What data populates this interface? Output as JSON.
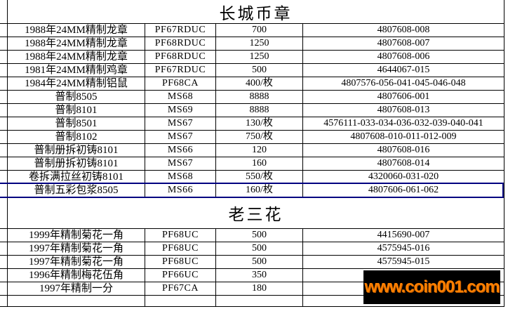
{
  "colors": {
    "grid_line": "#000000",
    "background": "#ffffff",
    "selection_border": "#000080",
    "watermark_background": "#000000",
    "watermark_text_color": "#ff8000"
  },
  "sections": [
    {
      "title": "长城币章",
      "columns": [
        "item-name",
        "grade",
        "price",
        "cert-number"
      ],
      "rows": [
        [
          "1988年24MM精制龙章",
          "PF67RDUC",
          "700",
          "4807608-008"
        ],
        [
          "1988年24MM精制龙章",
          "PF68RDUC",
          "1250",
          "4807608-007"
        ],
        [
          "1988年24MM精制龙章",
          "PF68RDUC",
          "1250",
          "4807608-006"
        ],
        [
          "1981年24MM精制鸡章",
          "PF67RDUC",
          "500",
          "4644067-015"
        ],
        [
          "1984年24MM精制铝鼠",
          "PF68CA",
          "400/枚",
          "4807576-056-041-045-046-048"
        ],
        [
          "普制8505",
          "MS68",
          "8888",
          "4807606-001"
        ],
        [
          "普制8101",
          "MS69",
          "8888",
          "4807608-013"
        ],
        [
          "普制8501",
          "MS67",
          "130/枚",
          "4576111-033-034-036-032-039-040-041"
        ],
        [
          "普制8102",
          "MS67",
          "750/枚",
          "4807608-010-011-012-009"
        ],
        [
          "普制册拆初铸8101",
          "MS66",
          "120",
          "4807608-016"
        ],
        [
          "普制册拆初铸8101",
          "MS67",
          "160",
          "4807608-014"
        ],
        [
          "卷拆满拉丝初铸8101",
          "MS68",
          "550/枚",
          "4320060-031-020"
        ],
        [
          "普制五彩包浆8505",
          "MS66",
          "160/枚",
          "4807606-061-062"
        ]
      ]
    },
    {
      "title": "老三花",
      "columns": [
        "item-name",
        "grade",
        "price",
        "cert-number"
      ],
      "rows": [
        [
          "1999年精制菊花一角",
          "PF68UC",
          "500",
          "4415690-007"
        ],
        [
          "1997年精制菊花一角",
          "PF68UC",
          "500",
          "4575945-016"
        ],
        [
          "1997年精制菊花一角",
          "PF68UC",
          "500",
          "4575945-015"
        ],
        [
          "1996年精制梅花伍角",
          "PF66UC",
          "350",
          ""
        ],
        [
          "1997年精制一分",
          "PF67CA",
          "180",
          ""
        ],
        [
          "",
          "",
          "",
          ""
        ]
      ]
    }
  ],
  "watermark": {
    "text": "www.coin001.com"
  }
}
